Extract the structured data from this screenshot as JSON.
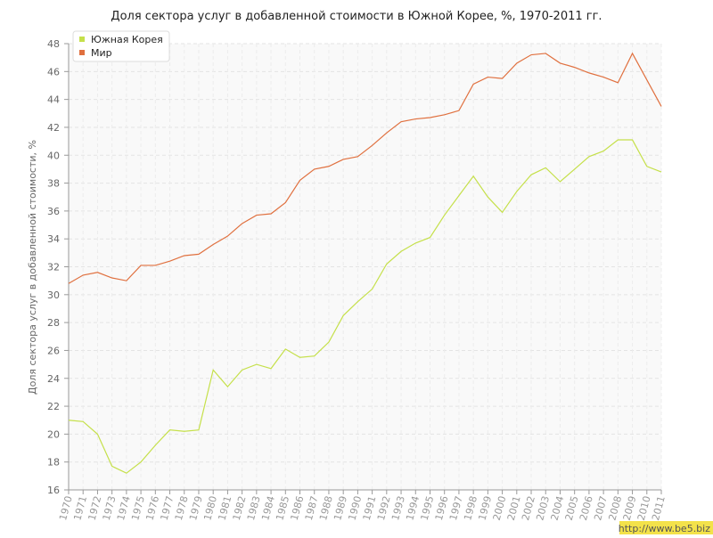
{
  "chart_data": {
    "type": "line",
    "title": "Доля сектора услуг в добавленной стоимости в Южной Корее, %, 1970-2011 гг.",
    "y_label": "Доля сектора услуг в добавленной стоимости, %",
    "categories": [
      "1970",
      "1971",
      "1972",
      "1973",
      "1974",
      "1975",
      "1976",
      "1977",
      "1978",
      "1979",
      "1980",
      "1981",
      "1982",
      "1983",
      "1984",
      "1985",
      "1986",
      "1987",
      "1988",
      "1989",
      "1990",
      "1991",
      "1992",
      "1993",
      "1994",
      "1995",
      "1996",
      "1997",
      "1998",
      "1999",
      "2000",
      "2001",
      "2002",
      "2003",
      "2004",
      "2005",
      "2006",
      "2007",
      "2008",
      "2009",
      "2010",
      "2011"
    ],
    "series": [
      {
        "name": "Южная Корея",
        "color": "#c5e04a",
        "values": [
          21.0,
          20.9,
          20.0,
          17.7,
          17.2,
          18.0,
          19.2,
          20.3,
          20.2,
          20.3,
          24.6,
          23.4,
          24.6,
          25.0,
          24.7,
          26.1,
          25.5,
          25.6,
          26.6,
          28.5,
          29.5,
          30.4,
          32.2,
          33.1,
          33.7,
          34.1,
          35.7,
          37.1,
          38.5,
          37.0,
          35.9,
          37.4,
          38.6,
          39.1,
          38.1,
          39.0,
          39.9,
          40.3,
          41.1,
          41.1,
          39.2,
          38.8
        ]
      },
      {
        "name": "Мир",
        "color": "#e0703f",
        "values": [
          30.8,
          31.4,
          31.6,
          31.2,
          31.0,
          32.1,
          32.1,
          32.4,
          32.8,
          32.9,
          33.6,
          34.2,
          35.1,
          35.7,
          35.8,
          36.6,
          38.2,
          39.0,
          39.2,
          39.7,
          39.9,
          40.7,
          41.6,
          42.4,
          42.6,
          42.7,
          42.9,
          43.2,
          45.1,
          45.6,
          45.5,
          46.6,
          47.2,
          47.3,
          46.6,
          46.3,
          45.9,
          45.6,
          45.2,
          47.3,
          45.4,
          43.5
        ]
      }
    ],
    "ylim": [
      16,
      48
    ],
    "yticks": [
      16,
      18,
      20,
      22,
      24,
      26,
      28,
      30,
      32,
      34,
      36,
      38,
      40,
      42,
      44,
      46,
      48
    ],
    "grid": true,
    "legend": "top-left",
    "watermark": "http://www.be5.biz"
  }
}
